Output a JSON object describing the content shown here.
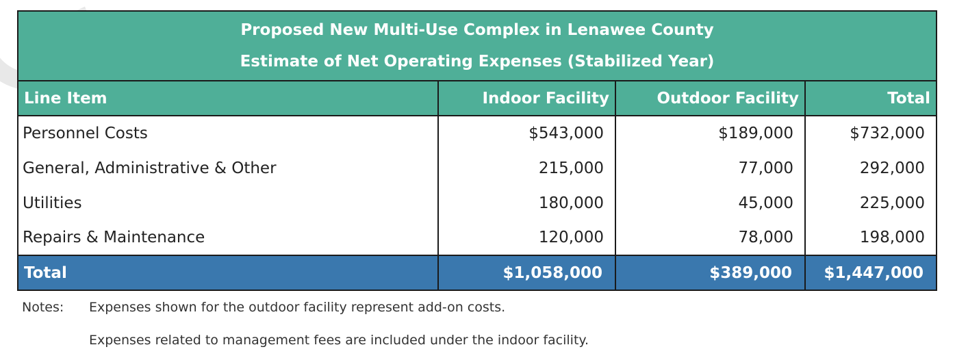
{
  "table": {
    "title_line1": "Proposed New Multi-Use Complex in Lenawee County",
    "title_line2": "Estimate of Net Operating Expenses (Stabilized Year)",
    "headers": {
      "line_item": "Line Item",
      "indoor": "Indoor Facility",
      "outdoor": "Outdoor Facility",
      "total": "Total"
    },
    "rows": [
      {
        "item": "Personnel Costs",
        "indoor": "$543,000",
        "outdoor": "$189,000",
        "total": "$732,000"
      },
      {
        "item": "General, Administrative & Other",
        "indoor": "215,000",
        "outdoor": "77,000",
        "total": "292,000"
      },
      {
        "item": "Utilities",
        "indoor": "180,000",
        "outdoor": "45,000",
        "total": "225,000"
      },
      {
        "item": "Repairs & Maintenance",
        "indoor": "120,000",
        "outdoor": "78,000",
        "total": "198,000"
      }
    ],
    "total_row": {
      "item": "Total",
      "indoor": "$1,058,000",
      "outdoor": "$389,000",
      "total": "$1,447,000"
    }
  },
  "notes": {
    "label": "Notes:",
    "line1": "Expenses shown for the outdoor facility represent add-on costs.",
    "line2": "Expenses related to management fees are included under the indoor facility."
  },
  "colors": {
    "header_green": "#4faf98",
    "total_blue": "#3a78ae",
    "border": "#1a1a1a"
  }
}
